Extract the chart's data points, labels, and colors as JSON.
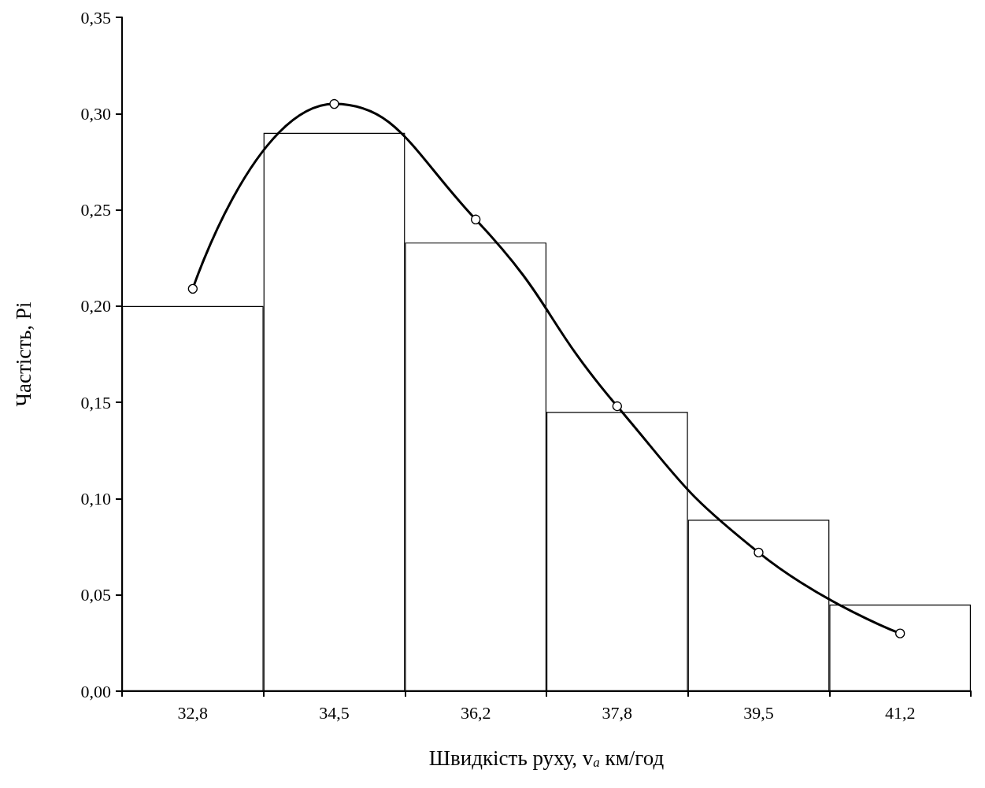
{
  "chart_data": {
    "type": "bar",
    "xlabel": "Швидкість руху, v$_{a}$ км/год",
    "ylabel": "Частість, Pi",
    "categories": [
      "32,8",
      "34,5",
      "36,2",
      "37,8",
      "39,5",
      "41,2"
    ],
    "series": [
      {
        "color": "#ffffff",
        "values": [
          0.2,
          0.29,
          0.233,
          0.145,
          0.089,
          0.045
        ]
      },
      {
        "type": "line",
        "color": "#000000",
        "values": [
          0.209,
          0.305,
          0.245,
          0.148,
          0.072,
          0.03
        ]
      }
    ],
    "ylim": [
      0,
      0.35
    ],
    "yticks": [
      {
        "value": 0,
        "label": "0,00"
      },
      {
        "value": 0.05,
        "label": "0,05"
      },
      {
        "value": 0.1,
        "label": "0,10"
      },
      {
        "value": 0.15,
        "label": "0,15"
      },
      {
        "value": 0.2,
        "label": "0,20"
      },
      {
        "value": 0.25,
        "label": "0,25"
      },
      {
        "value": 0.3,
        "label": "0,30"
      },
      {
        "value": 0.35,
        "label": "0,35"
      }
    ],
    "grid": false,
    "marker": "circle",
    "line_style": "solid"
  }
}
